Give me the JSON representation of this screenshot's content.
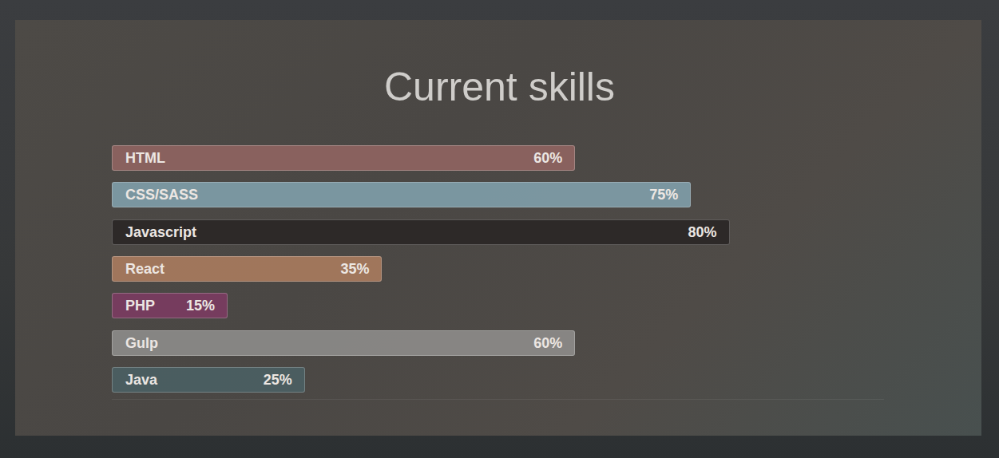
{
  "chart_data": {
    "type": "bar",
    "title": "Current skills",
    "orientation": "horizontal",
    "categories": [
      "HTML",
      "CSS/SASS",
      "Javascript",
      "React",
      "PHP",
      "Gulp",
      "Java"
    ],
    "values": [
      60,
      75,
      80,
      35,
      15,
      60,
      25
    ],
    "value_labels": [
      "60%",
      "75%",
      "80%",
      "35%",
      "15%",
      "60%",
      "25%"
    ],
    "colors": [
      "#8f6461",
      "#7f9da8",
      "#2b2726",
      "#a87a5e",
      "#7a3c61",
      "#8c8b89",
      "#4b5f63"
    ],
    "xlim": [
      0,
      100
    ],
    "data_labels": true,
    "tick_labels": false,
    "grid": false
  }
}
